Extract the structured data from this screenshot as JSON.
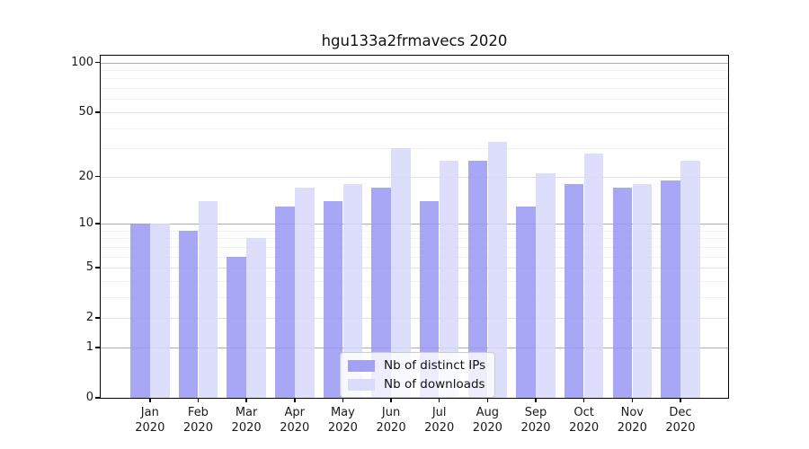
{
  "chart_data": {
    "type": "bar",
    "title": "hgu133a2frmavecs 2020",
    "categories": [
      "Jan",
      "Feb",
      "Mar",
      "Apr",
      "May",
      "Jun",
      "Jul",
      "Aug",
      "Sep",
      "Oct",
      "Nov",
      "Dec"
    ],
    "x_tick_second_line": "2020",
    "series": [
      {
        "name": "Nb of distinct IPs",
        "color": "#9898f4",
        "values": [
          10,
          9,
          6,
          13,
          14,
          17,
          14,
          25,
          13,
          18,
          17,
          19
        ]
      },
      {
        "name": "Nb of downloads",
        "color": "#d7d7fb",
        "values": [
          10,
          14,
          8,
          17,
          18,
          30,
          25,
          33,
          21,
          28,
          18,
          25
        ]
      }
    ],
    "yscale": "log1p",
    "ylim": [
      0,
      110
    ],
    "y_tick_labels": [
      0,
      1,
      2,
      5,
      10,
      20,
      50,
      100
    ],
    "y_minor_gridlines": [
      3,
      4,
      6,
      7,
      8,
      9,
      30,
      40,
      60,
      70,
      80,
      90
    ],
    "grid": true,
    "legend_position": "lower-center",
    "colors": {
      "decade_gridline": "#ababab",
      "mid_gridline": "#e0e0e0",
      "minor_gridline": "#f1f1f1",
      "frame": "#000000",
      "background": "#ffffff",
      "text": "#1a1a1a"
    }
  }
}
